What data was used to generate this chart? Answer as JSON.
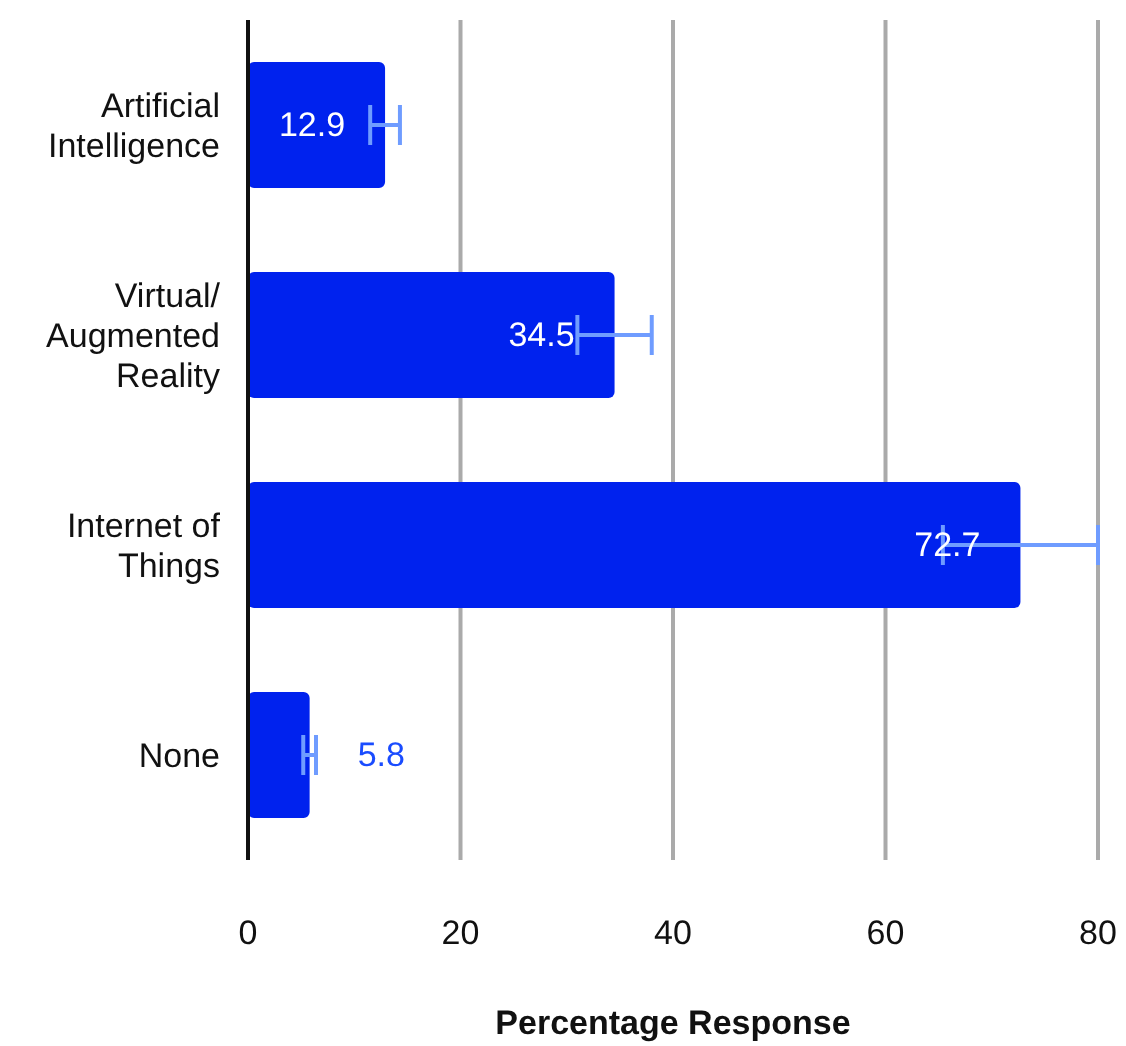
{
  "chart_data": {
    "type": "bar",
    "orientation": "horizontal",
    "xlabel": "Percentage Response",
    "categories": [
      "Artificial Intelligence",
      "Virtual/ Augmented Reality",
      "Internet of Things",
      "None"
    ],
    "values": [
      12.9,
      34.5,
      72.7,
      5.8
    ],
    "errors": [
      1.4,
      3.5,
      7.3,
      0.6
    ],
    "color": "#0022ee",
    "xlim": [
      0,
      80
    ],
    "xticks": [
      0,
      20,
      40,
      60,
      80
    ],
    "grid": "x",
    "data_labels": true
  }
}
